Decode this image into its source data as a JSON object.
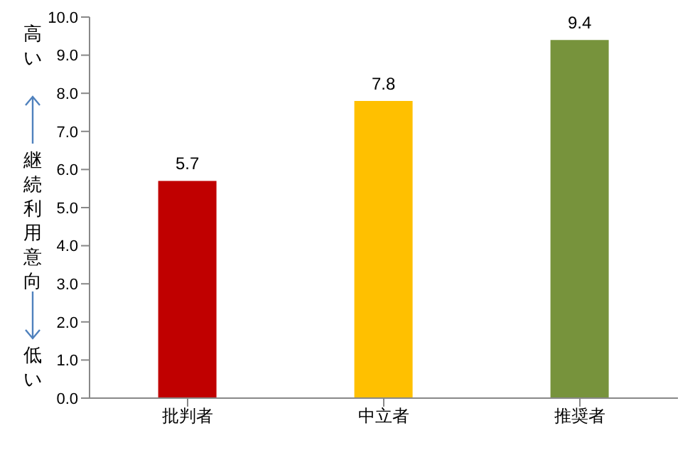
{
  "chart_data": {
    "type": "bar",
    "ylabel": "継続利用意向",
    "annotations": [
      "高い",
      "低い"
    ],
    "categories": [
      "批判者",
      "中立者",
      "推奨者"
    ],
    "values": [
      5.7,
      7.8,
      9.4
    ],
    "colors": [
      "#c00000",
      "#ffc000",
      "#77933c"
    ],
    "ylim": [
      0,
      10
    ],
    "yticks": [
      {
        "value": 0,
        "label": "0.0"
      },
      {
        "value": 1,
        "label": "1.0"
      },
      {
        "value": 2,
        "label": "2.0"
      },
      {
        "value": 3,
        "label": "3.0"
      },
      {
        "value": 4,
        "label": "4.0"
      },
      {
        "value": 5,
        "label": "5.0"
      },
      {
        "value": 6,
        "label": "6.0"
      },
      {
        "value": 7,
        "label": "7.0"
      },
      {
        "value": 8,
        "label": "8.0"
      },
      {
        "value": 9,
        "label": "9.0"
      },
      {
        "value": 10,
        "label": "10.0"
      }
    ],
    "data_labels": true,
    "grid": false
  }
}
